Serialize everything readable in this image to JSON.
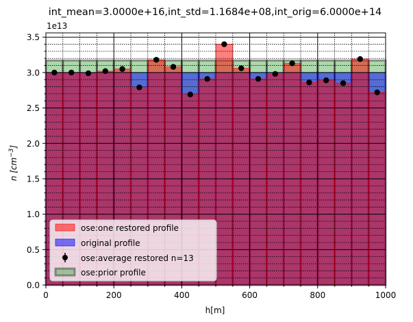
{
  "chart_data": {
    "type": "bar",
    "title": "int_mean=3.0000e+16,int_std=1.1684e+08,int_orig=6.0000e+14",
    "xlabel": "h[m]",
    "ylabel": "n [cm^-3]",
    "ylabel_main": "n [cm",
    "ylabel_exp": "−3",
    "ylabel_end": "]",
    "y_offset_text": "1e13",
    "y_scale": 10000000000000.0,
    "xlim": [
      0,
      1000
    ],
    "ylim": [
      0,
      3.56
    ],
    "xticks": [
      0,
      200,
      400,
      600,
      800,
      1000
    ],
    "xtick_labels": [
      "0",
      "200",
      "400",
      "600",
      "800",
      "1000"
    ],
    "yticks": [
      0.0,
      0.5,
      1.0,
      1.5,
      2.0,
      2.5,
      3.0,
      3.5
    ],
    "ytick_labels": [
      "0.0",
      "0.5",
      "1.0",
      "1.5",
      "2.0",
      "2.5",
      "3.0",
      "3.5"
    ],
    "bin_edges": [
      0,
      50,
      100,
      150,
      200,
      250,
      300,
      350,
      400,
      450,
      500,
      550,
      600,
      650,
      700,
      750,
      800,
      850,
      900,
      950,
      1000
    ],
    "x": [
      25,
      75,
      125,
      175,
      225,
      275,
      325,
      375,
      425,
      475,
      525,
      575,
      625,
      675,
      725,
      775,
      825,
      875,
      925,
      975
    ],
    "series": [
      {
        "name": "ose:prior profile",
        "color": "#2ca02c",
        "values": [
          3.17,
          3.17,
          3.17,
          3.17,
          3.17,
          3.17,
          3.17,
          3.17,
          3.17,
          3.17,
          3.17,
          3.17,
          3.17,
          3.17,
          3.17,
          3.17,
          3.17,
          3.17,
          3.17,
          3.17
        ]
      },
      {
        "name": "original profile",
        "color": "#0000ff",
        "values": [
          3.0,
          3.0,
          3.0,
          3.0,
          3.0,
          3.0,
          3.0,
          3.0,
          3.0,
          3.0,
          3.0,
          3.0,
          3.0,
          3.0,
          3.0,
          3.0,
          3.0,
          3.0,
          3.0,
          3.0
        ]
      },
      {
        "name": "ose:one restored profile",
        "color": "#ff0000",
        "values": [
          3.0,
          3.0,
          2.99,
          3.02,
          3.05,
          2.79,
          3.18,
          3.08,
          2.69,
          2.91,
          3.4,
          3.06,
          2.91,
          2.98,
          3.13,
          2.86,
          2.89,
          2.85,
          3.19,
          2.72
        ]
      },
      {
        "name": "ose:average restored n=13",
        "color": "#000000",
        "values": [
          3.0,
          3.0,
          2.99,
          3.02,
          3.05,
          2.79,
          3.18,
          3.08,
          2.69,
          2.91,
          3.4,
          3.06,
          2.91,
          2.98,
          3.13,
          2.86,
          2.89,
          2.85,
          3.19,
          2.72
        ]
      }
    ],
    "legend": {
      "placement": "lower-left",
      "entries": [
        "ose:one restored profile",
        "original profile",
        "ose:average restored n=13",
        "ose:prior profile"
      ]
    },
    "grid": "major and minor"
  }
}
